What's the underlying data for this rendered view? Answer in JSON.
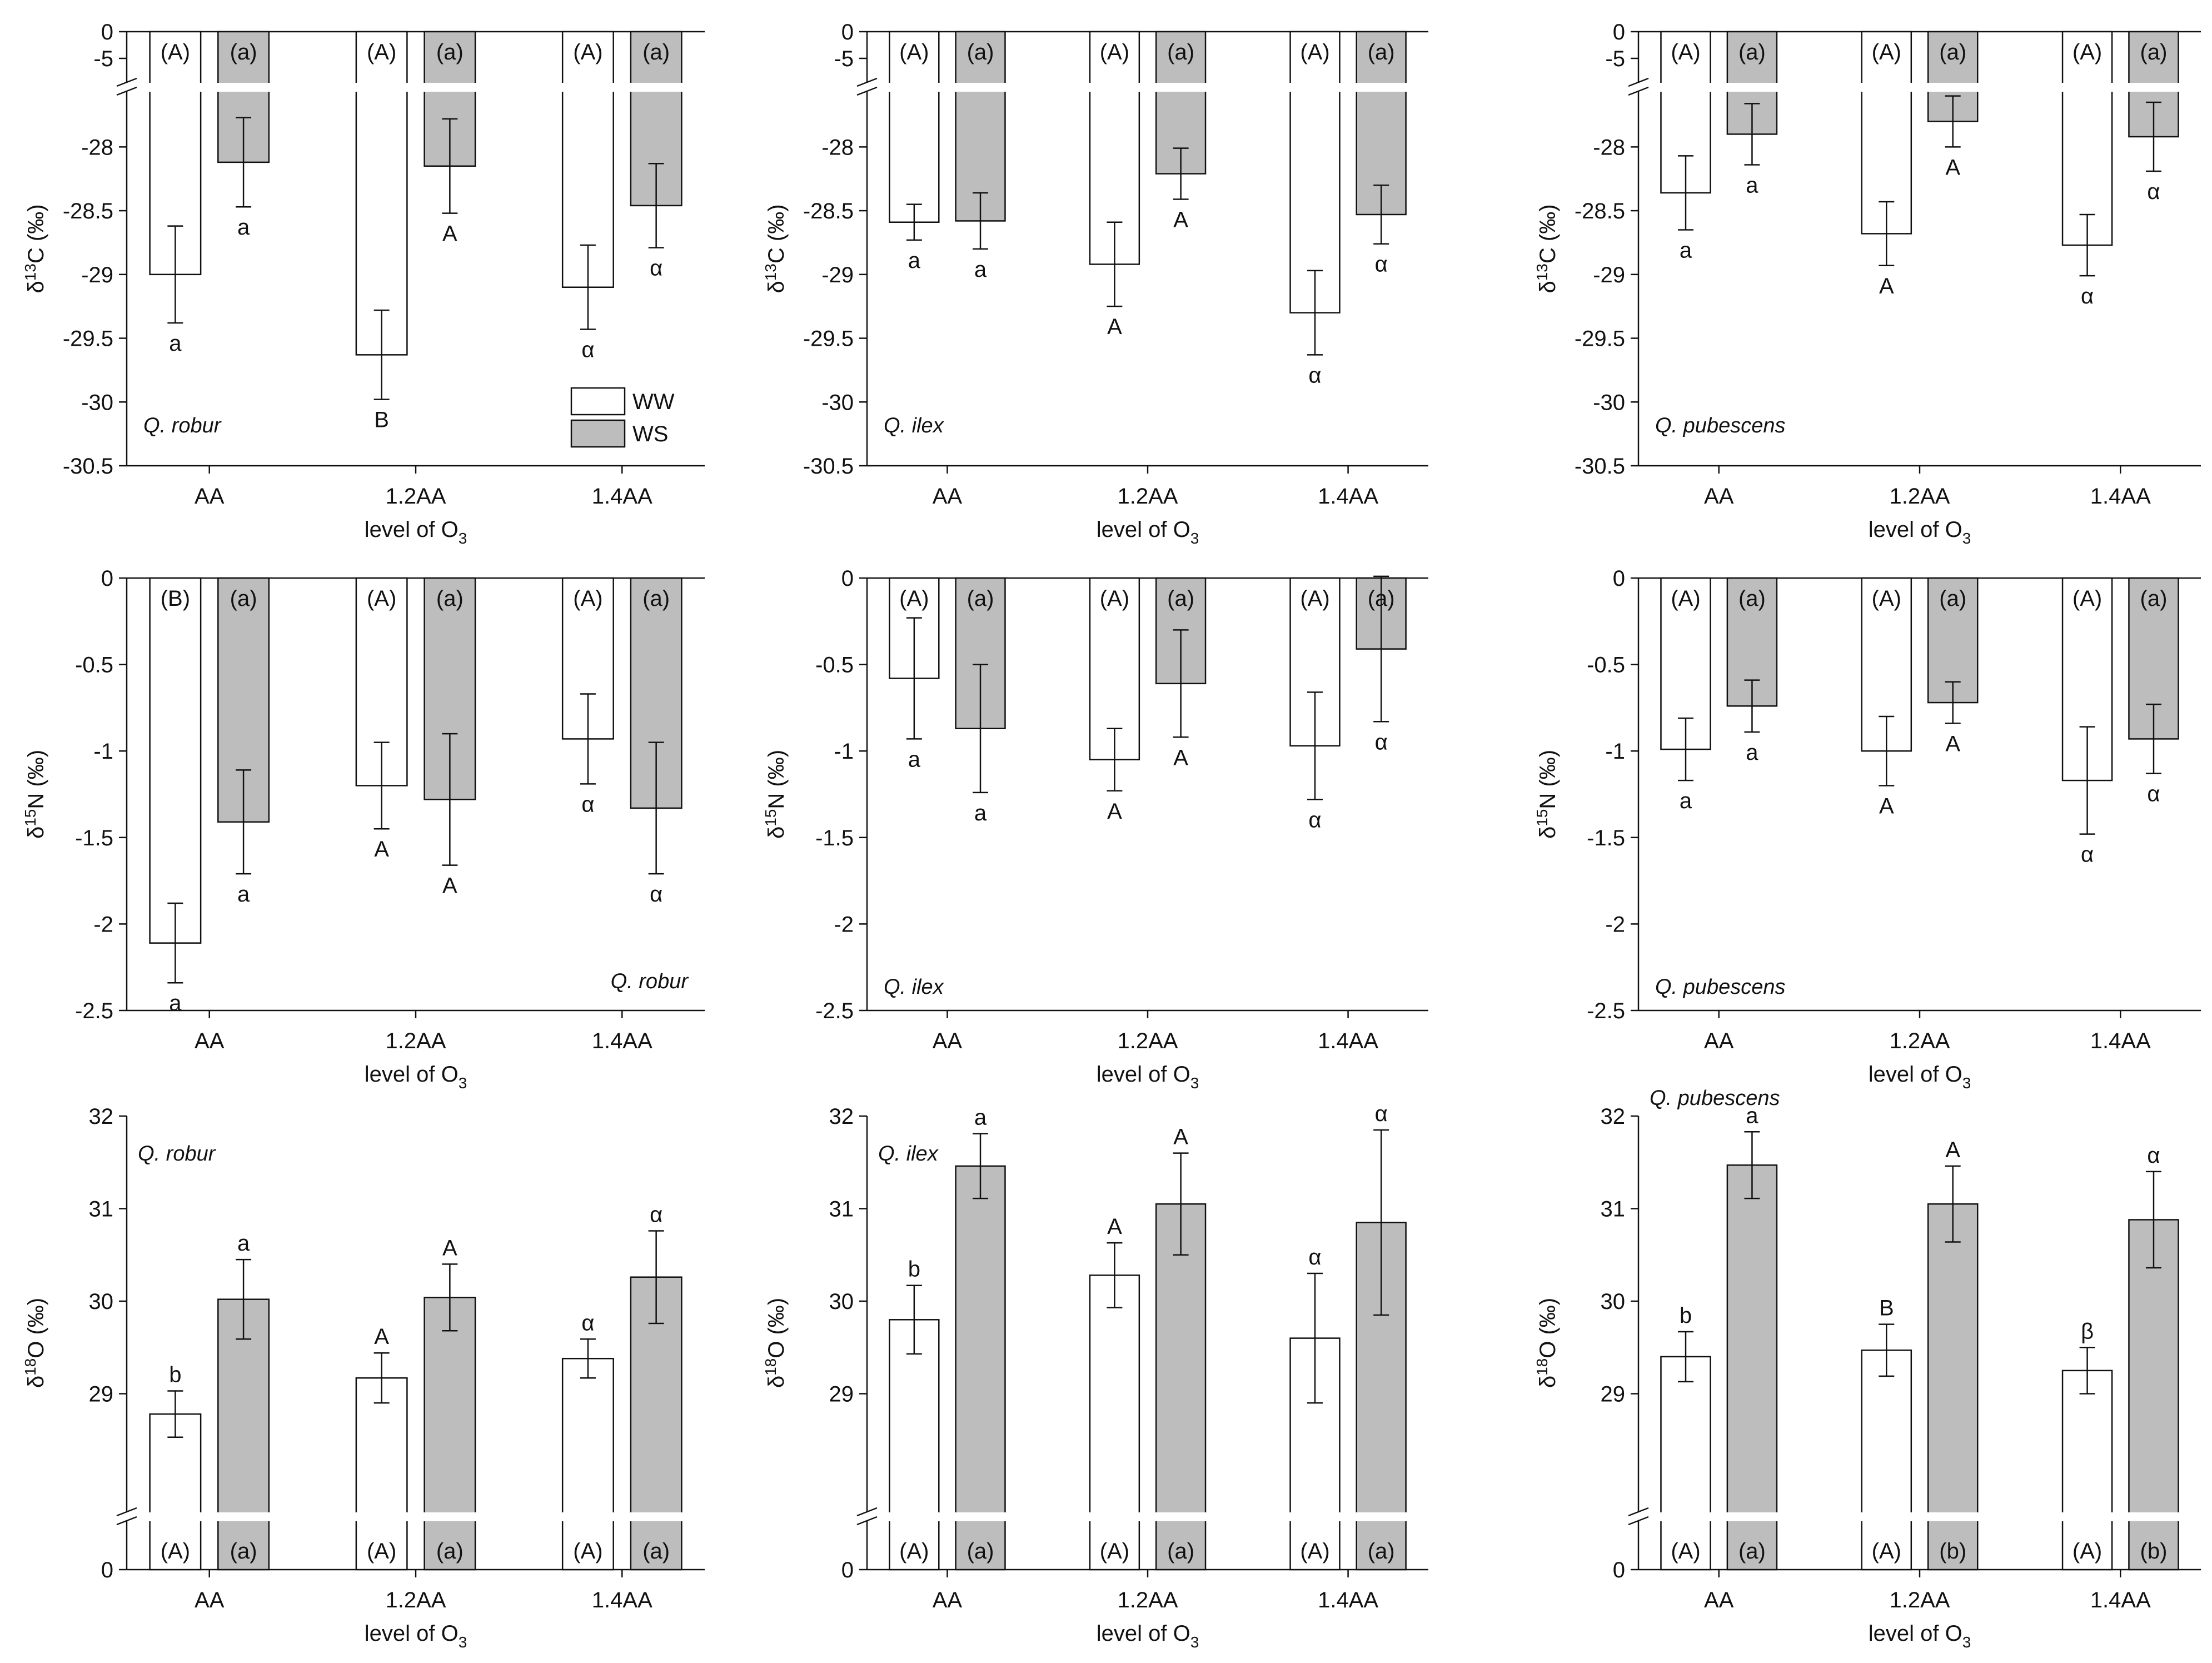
{
  "figure": {
    "x_axis_label": "level of O",
    "x_axis_label_sub": "3",
    "legend": [
      {
        "label": "WW",
        "color": "#ffffff"
      },
      {
        "label": "WS",
        "color": "#bdbdbd"
      }
    ],
    "colors": {
      "ww_fill": "#ffffff",
      "ws_fill": "#bdbdbd",
      "stroke": "#111111"
    }
  },
  "chart_data": [
    {
      "type": "bar",
      "row": 0,
      "col": 0,
      "species": "Q. robur",
      "ylabel_pre": "δ",
      "ylabel_sup": "13",
      "ylabel_post": "C (‰)",
      "categories": [
        "AA",
        "1.2AA",
        "1.4AA"
      ],
      "ylim": [
        -30.5,
        0
      ],
      "broken_axis": true,
      "yticks": [
        -30.5,
        -30,
        -29.5,
        -29,
        -28.5,
        -28
      ],
      "yticks_top": [
        0,
        -5
      ],
      "legend_shown": true,
      "series": [
        {
          "name": "WW",
          "values": [
            -29.0,
            -29.63,
            -29.1
          ],
          "errors": [
            0.38,
            0.35,
            0.33
          ],
          "letters_below": [
            "a",
            "B",
            "α"
          ],
          "letters_top": [
            "(A)",
            "(A)",
            "(A)"
          ]
        },
        {
          "name": "WS",
          "values": [
            -28.12,
            -28.15,
            -28.46
          ],
          "errors": [
            0.35,
            0.37,
            0.33
          ],
          "letters_below": [
            "a",
            "A",
            "α"
          ],
          "letters_top": [
            "(a)",
            "(a)",
            "(a)"
          ]
        }
      ]
    },
    {
      "type": "bar",
      "row": 0,
      "col": 1,
      "species": "Q. ilex",
      "ylabel_pre": "δ",
      "ylabel_sup": "13",
      "ylabel_post": "C (‰)",
      "categories": [
        "AA",
        "1.2AA",
        "1.4AA"
      ],
      "ylim": [
        -30.5,
        0
      ],
      "broken_axis": true,
      "yticks": [
        -30.5,
        -30,
        -29.5,
        -29,
        -28.5,
        -28
      ],
      "yticks_top": [
        0,
        -5
      ],
      "series": [
        {
          "name": "WW",
          "values": [
            -28.59,
            -28.92,
            -29.3
          ],
          "errors": [
            0.14,
            0.33,
            0.33
          ],
          "letters_below": [
            "a",
            "A",
            "α"
          ],
          "letters_top": [
            "(A)",
            "(A)",
            "(A)"
          ]
        },
        {
          "name": "WS",
          "values": [
            -28.58,
            -28.21,
            -28.53
          ],
          "errors": [
            0.22,
            0.2,
            0.23
          ],
          "letters_below": [
            "a",
            "A",
            "α"
          ],
          "letters_top": [
            "(a)",
            "(a)",
            "(a)"
          ]
        }
      ]
    },
    {
      "type": "bar",
      "row": 0,
      "col": 2,
      "species": "Q. pubescens",
      "ylabel_pre": "δ",
      "ylabel_sup": "13",
      "ylabel_post": "C (‰)",
      "categories": [
        "AA",
        "1.2AA",
        "1.4AA"
      ],
      "ylim": [
        -30.5,
        0
      ],
      "broken_axis": true,
      "yticks": [
        -30.5,
        -30,
        -29.5,
        -29,
        -28.5,
        -28
      ],
      "yticks_top": [
        0,
        -5
      ],
      "series": [
        {
          "name": "WW",
          "values": [
            -28.36,
            -28.68,
            -28.77
          ],
          "errors": [
            0.29,
            0.25,
            0.24
          ],
          "letters_below": [
            "a",
            "A",
            "α"
          ],
          "letters_top": [
            "(A)",
            "(A)",
            "(A)"
          ]
        },
        {
          "name": "WS",
          "values": [
            -27.9,
            -27.8,
            -27.92
          ],
          "errors": [
            0.24,
            0.2,
            0.27
          ],
          "letters_below": [
            "a",
            "A",
            "α"
          ],
          "letters_top": [
            "(a)",
            "(a)",
            "(a)"
          ]
        }
      ]
    },
    {
      "type": "bar",
      "row": 1,
      "col": 0,
      "species": "Q. robur",
      "ylabel_pre": "δ",
      "ylabel_sup": "15",
      "ylabel_post": "N (‰)",
      "categories": [
        "AA",
        "1.2AA",
        "1.4AA"
      ],
      "ylim": [
        -2.5,
        0
      ],
      "broken_axis": false,
      "yticks": [
        -2.5,
        -2,
        -1.5,
        -1,
        -0.5,
        0
      ],
      "series": [
        {
          "name": "WW",
          "values": [
            -2.11,
            -1.2,
            -0.93
          ],
          "errors": [
            0.23,
            0.25,
            0.26
          ],
          "letters_below": [
            "a",
            "A",
            "α"
          ],
          "letters_top": [
            "(B)",
            "(A)",
            "(A)"
          ]
        },
        {
          "name": "WS",
          "values": [
            -1.41,
            -1.28,
            -1.33
          ],
          "errors": [
            0.3,
            0.38,
            0.38
          ],
          "letters_below": [
            "a",
            "A",
            "α"
          ],
          "letters_top": [
            "(a)",
            "(a)",
            "(a)"
          ]
        }
      ]
    },
    {
      "type": "bar",
      "row": 1,
      "col": 1,
      "species": "Q. ilex",
      "ylabel_pre": "δ",
      "ylabel_sup": "15",
      "ylabel_post": "N (‰)",
      "categories": [
        "AA",
        "1.2AA",
        "1.4AA"
      ],
      "ylim": [
        -2.5,
        0
      ],
      "broken_axis": false,
      "yticks": [
        -2.5,
        -2,
        -1.5,
        -1,
        -0.5,
        0
      ],
      "series": [
        {
          "name": "WW",
          "values": [
            -0.58,
            -1.05,
            -0.97
          ],
          "errors": [
            0.35,
            0.18,
            0.31
          ],
          "letters_below": [
            "a",
            "A",
            "α"
          ],
          "letters_top": [
            "(A)",
            "(A)",
            "(A)"
          ]
        },
        {
          "name": "WS",
          "values": [
            -0.87,
            -0.61,
            -0.41
          ],
          "errors": [
            0.37,
            0.31,
            0.42
          ],
          "letters_below": [
            "a",
            "A",
            "α"
          ],
          "letters_top": [
            "(a)",
            "(a)",
            "(a)"
          ]
        }
      ]
    },
    {
      "type": "bar",
      "row": 1,
      "col": 2,
      "species": "Q. pubescens",
      "ylabel_pre": "δ",
      "ylabel_sup": "15",
      "ylabel_post": "N (‰)",
      "categories": [
        "AA",
        "1.2AA",
        "1.4AA"
      ],
      "ylim": [
        -2.5,
        0
      ],
      "broken_axis": false,
      "yticks": [
        -2.5,
        -2,
        -1.5,
        -1,
        -0.5,
        0
      ],
      "series": [
        {
          "name": "WW",
          "values": [
            -0.99,
            -1.0,
            -1.17
          ],
          "errors": [
            0.18,
            0.2,
            0.31
          ],
          "letters_below": [
            "a",
            "A",
            "α"
          ],
          "letters_top": [
            "(A)",
            "(A)",
            "(A)"
          ]
        },
        {
          "name": "WS",
          "values": [
            -0.74,
            -0.72,
            -0.93
          ],
          "errors": [
            0.15,
            0.12,
            0.2
          ],
          "letters_below": [
            "a",
            "A",
            "α"
          ],
          "letters_top": [
            "(a)",
            "(a)",
            "(a)"
          ]
        }
      ]
    },
    {
      "type": "bar",
      "row": 2,
      "col": 0,
      "species": "Q. robur",
      "ylabel_pre": "δ",
      "ylabel_sup": "18",
      "ylabel_post": "O (‰)",
      "categories": [
        "AA",
        "1.2AA",
        "1.4AA"
      ],
      "ylim": [
        28,
        32
      ],
      "broken_axis": true,
      "yticks": [
        29,
        30,
        31,
        32
      ],
      "yticks_bottom": [
        0
      ],
      "series": [
        {
          "name": "WW",
          "values": [
            28.78,
            29.17,
            29.38
          ],
          "errors": [
            0.25,
            0.27,
            0.21
          ],
          "letters_above": [
            "b",
            "A",
            "α"
          ],
          "letters_bottom": [
            "(A)",
            "(A)",
            "(A)"
          ]
        },
        {
          "name": "WS",
          "values": [
            30.02,
            30.04,
            30.26
          ],
          "errors": [
            0.43,
            0.36,
            0.5
          ],
          "letters_above": [
            "a",
            "A",
            "α"
          ],
          "letters_bottom": [
            "(a)",
            "(a)",
            "(a)"
          ]
        }
      ]
    },
    {
      "type": "bar",
      "row": 2,
      "col": 1,
      "species": "Q. ilex",
      "ylabel_pre": "δ",
      "ylabel_sup": "18",
      "ylabel_post": "O (‰)",
      "categories": [
        "AA",
        "1.2AA",
        "1.4AA"
      ],
      "ylim": [
        28,
        32
      ],
      "broken_axis": true,
      "yticks": [
        29,
        30,
        31,
        32
      ],
      "yticks_bottom": [
        0
      ],
      "series": [
        {
          "name": "WW",
          "values": [
            29.8,
            30.28,
            29.6
          ],
          "errors": [
            0.37,
            0.35,
            0.7
          ],
          "letters_above": [
            "b",
            "A",
            "α"
          ],
          "letters_bottom": [
            "(A)",
            "(A)",
            "(A)"
          ]
        },
        {
          "name": "WS",
          "values": [
            31.46,
            31.05,
            30.85
          ],
          "errors": [
            0.35,
            0.55,
            1.0
          ],
          "letters_above": [
            "a",
            "A",
            "α"
          ],
          "letters_bottom": [
            "(a)",
            "(a)",
            "(a)"
          ]
        }
      ]
    },
    {
      "type": "bar",
      "row": 2,
      "col": 2,
      "species": "Q. pubescens",
      "ylabel_pre": "δ",
      "ylabel_sup": "18",
      "ylabel_post": "O (‰)",
      "categories": [
        "AA",
        "1.2AA",
        "1.4AA"
      ],
      "ylim": [
        28,
        32
      ],
      "broken_axis": true,
      "yticks": [
        29,
        30,
        31,
        32
      ],
      "yticks_bottom": [
        0
      ],
      "series": [
        {
          "name": "WW",
          "values": [
            29.4,
            29.47,
            29.25
          ],
          "errors": [
            0.27,
            0.28,
            0.25
          ],
          "letters_above": [
            "b",
            "B",
            "β"
          ],
          "letters_bottom": [
            "(A)",
            "(A)",
            "(A)"
          ]
        },
        {
          "name": "WS",
          "values": [
            31.47,
            31.05,
            30.88
          ],
          "errors": [
            0.36,
            0.41,
            0.52
          ],
          "letters_above": [
            "a",
            "A",
            "α"
          ],
          "letters_bottom": [
            "(a)",
            "(b)",
            "(b)"
          ]
        }
      ]
    }
  ]
}
